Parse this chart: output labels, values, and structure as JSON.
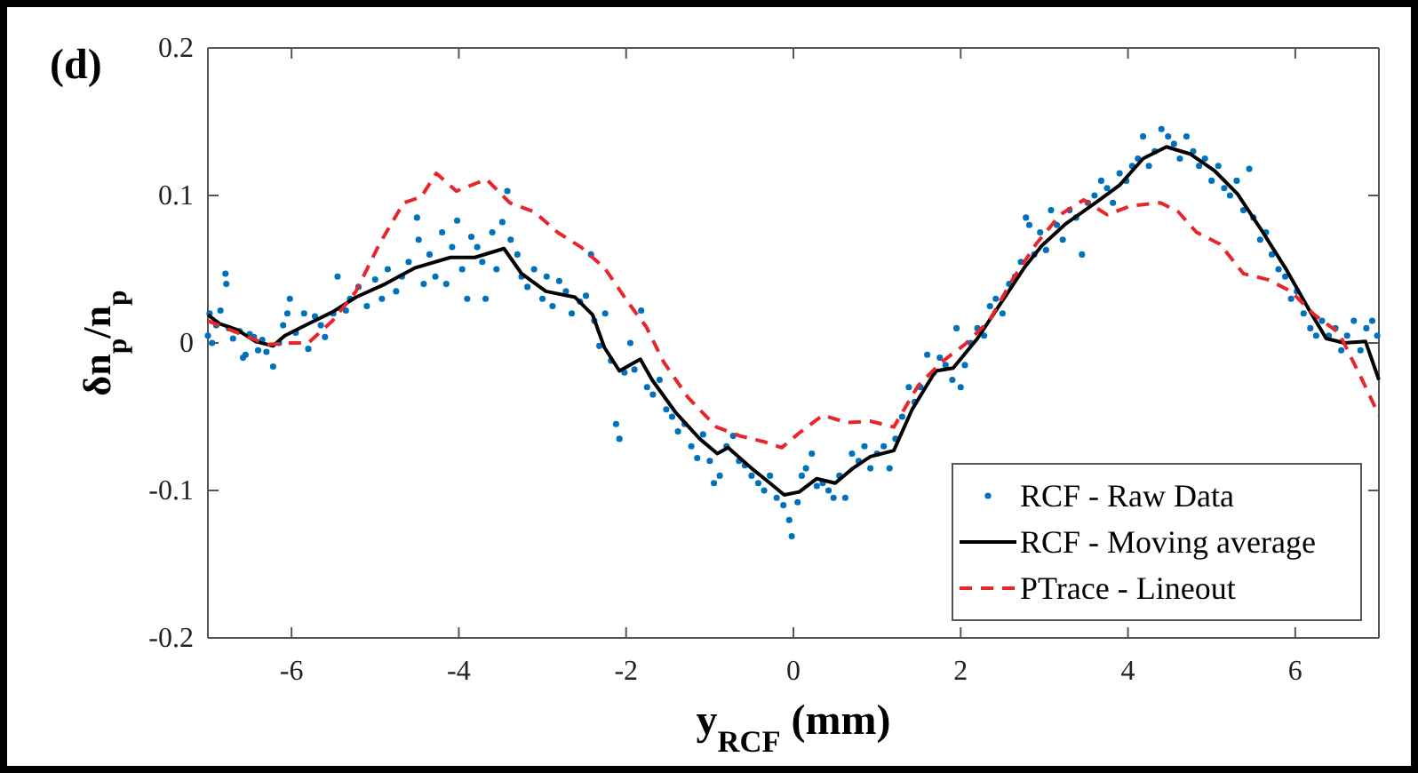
{
  "chart_data": {
    "type": "line",
    "xlabel": "y$_{RCF}$ (mm)",
    "ylabel": "δn$_{p}$/n$_{p}$",
    "annotations": [
      "(d)"
    ],
    "xlim": [
      -7,
      7
    ],
    "xticks": [
      -6,
      -4,
      -2,
      0,
      2,
      4,
      6
    ],
    "ylim": [
      -0.2,
      0.2
    ],
    "yticks": [
      -0.2,
      -0.1,
      0,
      0.1,
      0.2
    ],
    "grid": false,
    "legend": "bottom right",
    "series": [
      {
        "name": "RCF - Raw Data",
        "type": "scatter",
        "marker": "circle",
        "color": "#0072bd",
        "x": [
          -7.0,
          -6.98,
          -6.95,
          -6.9,
          -6.85,
          -6.79,
          -6.78,
          -6.75,
          -6.7,
          -6.62,
          -6.58,
          -6.55,
          -6.5,
          -6.45,
          -6.4,
          -6.35,
          -6.3,
          -6.22,
          -6.15,
          -6.1,
          -6.05,
          -6.02,
          -5.95,
          -5.85,
          -5.8,
          -5.72,
          -5.65,
          -5.6,
          -5.5,
          -5.45,
          -5.35,
          -5.3,
          -5.2,
          -5.1,
          -5.0,
          -4.92,
          -4.85,
          -4.75,
          -4.68,
          -4.6,
          -4.5,
          -4.48,
          -4.42,
          -4.35,
          -4.28,
          -4.2,
          -4.15,
          -4.08,
          -4.02,
          -3.96,
          -3.9,
          -3.85,
          -3.78,
          -3.72,
          -3.68,
          -3.6,
          -3.55,
          -3.48,
          -3.42,
          -3.38,
          -3.3,
          -3.25,
          -3.18,
          -3.1,
          -3.0,
          -2.95,
          -2.88,
          -2.8,
          -2.72,
          -2.65,
          -2.55,
          -2.48,
          -2.42,
          -2.38,
          -2.32,
          -2.25,
          -2.18,
          -2.12,
          -2.08,
          -2.02,
          -1.95,
          -1.9,
          -1.82,
          -1.75,
          -1.68,
          -1.6,
          -1.52,
          -1.45,
          -1.38,
          -1.3,
          -1.22,
          -1.15,
          -1.08,
          -1.0,
          -0.95,
          -0.88,
          -0.8,
          -0.72,
          -0.65,
          -0.58,
          -0.5,
          -0.42,
          -0.35,
          -0.28,
          -0.2,
          -0.12,
          -0.05,
          -0.02,
          0.05,
          0.1,
          0.15,
          0.22,
          0.28,
          0.35,
          0.42,
          0.48,
          0.55,
          0.62,
          0.7,
          0.78,
          0.85,
          0.92,
          1.0,
          1.08,
          1.15,
          1.22,
          1.3,
          1.38,
          1.45,
          1.52,
          1.6,
          1.68,
          1.75,
          1.82,
          1.9,
          1.95,
          2.0,
          2.05,
          2.12,
          2.2,
          2.28,
          2.35,
          2.42,
          2.5,
          2.58,
          2.65,
          2.72,
          2.78,
          2.82,
          2.88,
          2.95,
          3.02,
          3.08,
          3.15,
          3.22,
          3.3,
          3.38,
          3.45,
          3.52,
          3.6,
          3.68,
          3.75,
          3.82,
          3.9,
          3.98,
          4.05,
          4.12,
          4.18,
          4.25,
          4.32,
          4.4,
          4.48,
          4.55,
          4.62,
          4.7,
          4.78,
          4.85,
          4.92,
          5.0,
          5.08,
          5.15,
          5.22,
          5.3,
          5.38,
          5.45,
          5.5,
          5.58,
          5.65,
          5.72,
          5.8,
          5.88,
          5.95,
          6.02,
          6.1,
          6.18,
          6.25,
          6.32,
          6.4,
          6.48,
          6.55,
          6.62,
          6.7,
          6.78,
          6.85,
          6.92,
          6.98
        ],
        "values": [
          0.005,
          0.02,
          0.0,
          0.012,
          0.022,
          0.047,
          0.04,
          0.01,
          0.003,
          0.008,
          -0.01,
          -0.008,
          0.006,
          0.004,
          -0.005,
          0.002,
          -0.006,
          -0.016,
          0.0,
          0.012,
          0.02,
          0.03,
          0.007,
          0.02,
          -0.004,
          0.018,
          0.012,
          0.004,
          0.02,
          0.045,
          0.022,
          0.03,
          0.038,
          0.025,
          0.043,
          0.03,
          0.05,
          0.035,
          0.045,
          0.055,
          0.085,
          0.07,
          0.04,
          0.06,
          0.045,
          0.075,
          0.04,
          0.065,
          0.083,
          0.05,
          0.03,
          0.072,
          0.065,
          0.055,
          0.03,
          0.075,
          0.05,
          0.082,
          0.103,
          0.07,
          0.06,
          0.045,
          0.038,
          0.05,
          0.03,
          0.045,
          0.025,
          0.042,
          0.035,
          0.02,
          0.028,
          0.032,
          0.06,
          0.015,
          -0.002,
          0.02,
          -0.012,
          -0.055,
          -0.065,
          -0.02,
          0.0,
          -0.018,
          0.022,
          -0.03,
          -0.035,
          -0.025,
          -0.045,
          -0.05,
          -0.06,
          -0.055,
          -0.07,
          -0.078,
          -0.062,
          -0.08,
          -0.095,
          -0.09,
          -0.07,
          -0.063,
          -0.08,
          -0.083,
          -0.09,
          -0.095,
          -0.1,
          -0.09,
          -0.105,
          -0.11,
          -0.12,
          -0.131,
          -0.108,
          -0.09,
          -0.085,
          -0.075,
          -0.097,
          -0.095,
          -0.1,
          -0.105,
          -0.09,
          -0.105,
          -0.075,
          -0.08,
          -0.07,
          -0.085,
          -0.075,
          -0.07,
          -0.085,
          -0.065,
          -0.05,
          -0.03,
          -0.04,
          -0.03,
          -0.008,
          -0.02,
          -0.01,
          -0.015,
          -0.025,
          0.01,
          -0.03,
          -0.015,
          0.0,
          0.01,
          0.005,
          0.025,
          0.03,
          0.02,
          0.04,
          0.045,
          0.055,
          0.085,
          0.08,
          0.06,
          0.075,
          0.063,
          0.09,
          0.08,
          0.07,
          0.09,
          0.085,
          0.06,
          0.095,
          0.1,
          0.11,
          0.105,
          0.095,
          0.115,
          0.11,
          0.12,
          0.125,
          0.14,
          0.12,
          0.13,
          0.145,
          0.14,
          0.135,
          0.125,
          0.14,
          0.13,
          0.12,
          0.125,
          0.11,
          0.12,
          0.105,
          0.1,
          0.11,
          0.09,
          0.118,
          0.085,
          0.07,
          0.075,
          0.06,
          0.05,
          0.045,
          0.03,
          0.035,
          0.02,
          0.01,
          0.005,
          0.015,
          0.005,
          0.01,
          -0.005,
          0.005,
          0.015,
          -0.005,
          0.01,
          0.015,
          0.005
        ]
      },
      {
        "name": "RCF - Moving average",
        "line_style": "solid",
        "color": "#000000",
        "x": [
          -7,
          -6.86,
          -6.65,
          -6.43,
          -6.22,
          -6.08,
          -5.8,
          -5.51,
          -5.23,
          -4.88,
          -4.52,
          -4.1,
          -3.81,
          -3.46,
          -3.25,
          -2.96,
          -2.61,
          -2.4,
          -2.26,
          -2.08,
          -1.83,
          -1.69,
          -1.41,
          -1.12,
          -0.91,
          -0.78,
          -0.5,
          -0.28,
          -0.11,
          0.07,
          0.28,
          0.5,
          0.71,
          0.92,
          1.2,
          1.42,
          1.7,
          1.91,
          2.2,
          2.48,
          2.76,
          2.97,
          3.26,
          3.61,
          3.9,
          4.18,
          4.46,
          4.75,
          5.03,
          5.31,
          5.59,
          5.88,
          6.16,
          6.37,
          6.59,
          6.84,
          7.0
        ],
        "values": [
          0.019,
          0.013,
          0.009,
          0.001,
          -0.002,
          0.005,
          0.013,
          0.021,
          0.031,
          0.04,
          0.051,
          0.058,
          0.058,
          0.064,
          0.047,
          0.035,
          0.031,
          0.019,
          -0.003,
          -0.019,
          -0.011,
          -0.025,
          -0.047,
          -0.065,
          -0.075,
          -0.071,
          -0.085,
          -0.095,
          -0.103,
          -0.101,
          -0.092,
          -0.095,
          -0.085,
          -0.077,
          -0.073,
          -0.045,
          -0.019,
          -0.017,
          0.003,
          0.027,
          0.051,
          0.066,
          0.081,
          0.095,
          0.107,
          0.125,
          0.133,
          0.128,
          0.117,
          0.101,
          0.077,
          0.051,
          0.023,
          0.003,
          0.0,
          0.001,
          -0.025
        ]
      },
      {
        "name": "PTrace - Lineout",
        "line_style": "dashed",
        "color": "#e8252a",
        "x": [
          -7,
          -6.65,
          -6.29,
          -6.01,
          -5.8,
          -5.51,
          -5.23,
          -4.95,
          -4.66,
          -4.45,
          -4.27,
          -4.03,
          -3.67,
          -3.39,
          -3.1,
          -2.82,
          -2.54,
          -2.26,
          -1.97,
          -1.76,
          -1.55,
          -1.26,
          -0.92,
          -0.64,
          -0.35,
          -0.14,
          0.07,
          0.35,
          0.64,
          0.92,
          1.2,
          1.49,
          1.77,
          2.05,
          2.34,
          2.62,
          2.9,
          3.19,
          3.47,
          3.75,
          4.04,
          4.39,
          4.6,
          4.82,
          5.1,
          5.38,
          5.67,
          5.95,
          6.23,
          6.52,
          6.8,
          7.0
        ],
        "values": [
          0.015,
          0.007,
          -0.001,
          0.0,
          0.0,
          0.015,
          0.035,
          0.067,
          0.095,
          0.099,
          0.115,
          0.103,
          0.111,
          0.095,
          0.089,
          0.075,
          0.065,
          0.051,
          0.027,
          0.011,
          -0.013,
          -0.037,
          -0.057,
          -0.063,
          -0.067,
          -0.071,
          -0.061,
          -0.049,
          -0.054,
          -0.053,
          -0.057,
          -0.029,
          -0.013,
          -0.001,
          0.015,
          0.043,
          0.067,
          0.087,
          0.097,
          0.087,
          0.093,
          0.095,
          0.089,
          0.075,
          0.067,
          0.047,
          0.043,
          0.035,
          0.019,
          0.007,
          -0.025,
          -0.049
        ]
      }
    ]
  }
}
